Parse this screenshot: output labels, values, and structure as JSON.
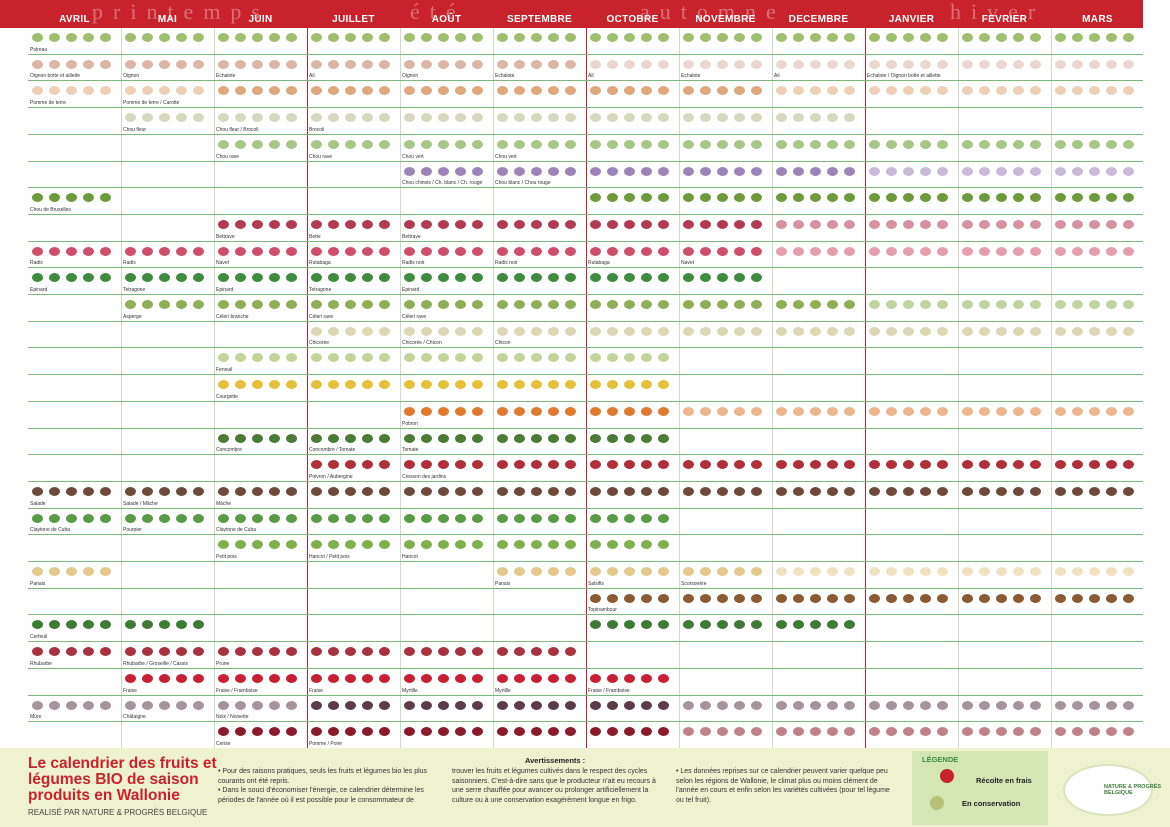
{
  "header": {
    "bg": "#c8232c",
    "seasons": [
      "printemps",
      "été",
      "automne",
      "hiver"
    ],
    "months": [
      "AVRIL",
      "MAI",
      "JUIN",
      "JUILLET",
      "AOÛT",
      "SEPTEMBRE",
      "OCTOBRE",
      "NOVEMBRE",
      "DECEMBRE",
      "JANVIER",
      "FEVRIER",
      "MARS"
    ]
  },
  "rows": [
    {
      "labels": [
        "Poireau"
      ],
      "fresh": [
        1,
        1,
        1,
        1,
        1,
        1,
        1,
        1,
        1,
        1,
        1,
        1
      ],
      "store": [
        0,
        0,
        0,
        0,
        0,
        0,
        0,
        0,
        0,
        0,
        0,
        0
      ],
      "color": "#9fbf6f"
    },
    {
      "labels": [
        "Oignon botte et aillette",
        "Oignon",
        "Echalote",
        "Ail",
        "Oignon",
        "Echalote",
        "Ail",
        "Echalote",
        "Ail",
        "Echalote / Oignon botte et aillette"
      ],
      "fresh": [
        1,
        1,
        1,
        1,
        1,
        1,
        0,
        0,
        0,
        0,
        0,
        0
      ],
      "store": [
        0,
        0,
        0,
        0,
        0,
        0,
        1,
        1,
        1,
        1,
        1,
        1
      ],
      "color": "#d9b7a8"
    },
    {
      "labels": [
        "Pomme de terre",
        "Pomme de terre / Carotte"
      ],
      "fresh": [
        0,
        0,
        1,
        1,
        1,
        1,
        1,
        1,
        0,
        0,
        0,
        0
      ],
      "store": [
        1,
        1,
        0,
        0,
        0,
        0,
        0,
        0,
        1,
        1,
        1,
        1
      ],
      "color": "#e0a77c"
    },
    {
      "labels": [
        "Chou fleur",
        "Chou fleur / Brocoli",
        "Brocoli"
      ],
      "fresh": [
        0,
        1,
        1,
        1,
        1,
        1,
        1,
        1,
        1,
        0,
        0,
        0
      ],
      "store": [
        0,
        0,
        0,
        0,
        0,
        0,
        0,
        0,
        0,
        0,
        0,
        0
      ],
      "color": "#d8d8c0"
    },
    {
      "labels": [
        "Chou rave",
        "Chou rave",
        "Chou vert",
        "Chou vert"
      ],
      "fresh": [
        0,
        0,
        1,
        1,
        1,
        1,
        1,
        1,
        1,
        1,
        1,
        1
      ],
      "store": [
        0,
        0,
        0,
        0,
        0,
        0,
        0,
        0,
        0,
        0,
        0,
        0
      ],
      "color": "#a8c58a"
    },
    {
      "labels": [
        "Chou chinois / Ch. blanc / Ch. rouge",
        "Chou blanc / Chou rouge"
      ],
      "fresh": [
        0,
        0,
        0,
        0,
        1,
        1,
        1,
        1,
        1,
        0,
        0,
        0
      ],
      "store": [
        0,
        0,
        0,
        0,
        0,
        0,
        0,
        0,
        0,
        1,
        1,
        1
      ],
      "color": "#9c84b8"
    },
    {
      "labels": [
        "Chou de Bruxelles"
      ],
      "fresh": [
        1,
        0,
        0,
        0,
        0,
        0,
        1,
        1,
        1,
        1,
        1,
        1
      ],
      "store": [
        0,
        0,
        0,
        0,
        0,
        0,
        0,
        0,
        0,
        0,
        0,
        0
      ],
      "color": "#6f9a3c"
    },
    {
      "labels": [
        "Bettrave",
        "Bette",
        "Bettrave"
      ],
      "fresh": [
        0,
        0,
        1,
        1,
        1,
        1,
        1,
        1,
        0,
        0,
        0,
        0
      ],
      "store": [
        0,
        0,
        0,
        0,
        0,
        0,
        0,
        0,
        1,
        1,
        1,
        1
      ],
      "color": "#b23a55"
    },
    {
      "labels": [
        "Radis",
        "Radis",
        "Navet",
        "Rutabaga",
        "Radis noir",
        "Radis noir",
        "Rutabaga",
        "Navet"
      ],
      "fresh": [
        1,
        1,
        1,
        1,
        1,
        1,
        1,
        1,
        0,
        0,
        0,
        0
      ],
      "store": [
        0,
        0,
        0,
        0,
        0,
        0,
        0,
        0,
        1,
        1,
        1,
        1
      ],
      "color": "#cf4f6a"
    },
    {
      "labels": [
        "Epinard",
        "Tetragone",
        "Epinard",
        "Tetragone",
        "Epinard"
      ],
      "fresh": [
        1,
        1,
        1,
        1,
        1,
        1,
        1,
        1,
        0,
        0,
        0,
        0
      ],
      "store": [
        0,
        0,
        0,
        0,
        0,
        0,
        0,
        0,
        0,
        0,
        0,
        0
      ],
      "color": "#3f8b3f"
    },
    {
      "labels": [
        "Asperge",
        "Céleri branche",
        "Céleri rave",
        "Céleri rave"
      ],
      "fresh": [
        0,
        1,
        1,
        1,
        1,
        1,
        1,
        1,
        1,
        0,
        0,
        0
      ],
      "store": [
        0,
        0,
        0,
        0,
        0,
        0,
        0,
        0,
        0,
        1,
        1,
        1
      ],
      "color": "#8fae55"
    },
    {
      "labels": [
        "Chicorée",
        "Chicorée / Chicon",
        "Chicon"
      ],
      "fresh": [
        0,
        0,
        0,
        1,
        1,
        1,
        1,
        1,
        1,
        1,
        1,
        1
      ],
      "store": [
        0,
        0,
        0,
        0,
        0,
        0,
        0,
        0,
        0,
        0,
        0,
        0
      ],
      "color": "#dcd7b4"
    },
    {
      "labels": [
        "Fenouil"
      ],
      "fresh": [
        0,
        0,
        1,
        1,
        1,
        1,
        1,
        0,
        0,
        0,
        0,
        0
      ],
      "store": [
        0,
        0,
        0,
        0,
        0,
        0,
        0,
        0,
        0,
        0,
        0,
        0
      ],
      "color": "#c3d49a"
    },
    {
      "labels": [
        "Courgette"
      ],
      "fresh": [
        0,
        0,
        1,
        1,
        1,
        1,
        1,
        0,
        0,
        0,
        0,
        0
      ],
      "store": [
        0,
        0,
        0,
        0,
        0,
        0,
        0,
        0,
        0,
        0,
        0,
        0
      ],
      "color": "#e3c23a"
    },
    {
      "labels": [
        "Potiron"
      ],
      "fresh": [
        0,
        0,
        0,
        0,
        1,
        1,
        1,
        0,
        0,
        0,
        0,
        0
      ],
      "store": [
        0,
        0,
        0,
        0,
        0,
        0,
        0,
        1,
        1,
        1,
        1,
        1
      ],
      "color": "#e07a2e"
    },
    {
      "labels": [
        "Concombre",
        "Concombre / Tomate",
        "Tomate"
      ],
      "fresh": [
        0,
        0,
        1,
        1,
        1,
        1,
        1,
        0,
        0,
        0,
        0,
        0
      ],
      "store": [
        0,
        0,
        0,
        0,
        0,
        0,
        0,
        0,
        0,
        0,
        0,
        0
      ],
      "color": "#4c7a37"
    },
    {
      "labels": [
        "Poivron / Aubergine",
        "Cresson des jardins"
      ],
      "fresh": [
        0,
        0,
        0,
        1,
        1,
        1,
        1,
        1,
        1,
        1,
        1,
        1
      ],
      "store": [
        0,
        0,
        0,
        0,
        0,
        0,
        0,
        0,
        0,
        0,
        0,
        0
      ],
      "color": "#b12f3a"
    },
    {
      "labels": [
        "Salade",
        "Salade / Mâche",
        "Mâche"
      ],
      "fresh": [
        1,
        1,
        1,
        1,
        1,
        1,
        1,
        1,
        1,
        1,
        1,
        1
      ],
      "store": [
        0,
        0,
        0,
        0,
        0,
        0,
        0,
        0,
        0,
        0,
        0,
        0
      ],
      "color": "#6e4a3c"
    },
    {
      "labels": [
        "Claytone de Cuba",
        "Pourpier",
        "Claytone de Cuba"
      ],
      "fresh": [
        1,
        1,
        1,
        1,
        1,
        1,
        1,
        0,
        0,
        0,
        0,
        0
      ],
      "store": [
        0,
        0,
        0,
        0,
        0,
        0,
        0,
        0,
        0,
        0,
        0,
        0
      ],
      "color": "#5c9b45"
    },
    {
      "labels": [
        "Petit pois",
        "Haricot / Petit pois",
        "Haricot"
      ],
      "fresh": [
        0,
        0,
        1,
        1,
        1,
        1,
        1,
        0,
        0,
        0,
        0,
        0
      ],
      "store": [
        0,
        0,
        0,
        0,
        0,
        0,
        0,
        0,
        0,
        0,
        0,
        0
      ],
      "color": "#7fb04c"
    },
    {
      "labels": [
        "Panais",
        "Panais",
        "Salsifis",
        "Scorsonère"
      ],
      "fresh": [
        1,
        0,
        0,
        0,
        0,
        1,
        1,
        1,
        0,
        0,
        0,
        0
      ],
      "store": [
        0,
        0,
        0,
        0,
        0,
        0,
        0,
        0,
        1,
        1,
        1,
        1
      ],
      "color": "#e4c98d"
    },
    {
      "labels": [
        "Topinambour"
      ],
      "fresh": [
        0,
        0,
        0,
        0,
        0,
        0,
        1,
        1,
        1,
        1,
        1,
        1
      ],
      "store": [
        0,
        0,
        0,
        0,
        0,
        0,
        0,
        0,
        0,
        0,
        0,
        0
      ],
      "color": "#8a5a34"
    },
    {
      "labels": [
        "Cerfeuil"
      ],
      "fresh": [
        1,
        1,
        0,
        0,
        0,
        0,
        1,
        1,
        1,
        0,
        0,
        0
      ],
      "store": [
        0,
        0,
        0,
        0,
        0,
        0,
        0,
        0,
        0,
        0,
        0,
        0
      ],
      "color": "#3f7a37"
    },
    {
      "labels": [
        "Rhubarbe",
        "Rhubarbe / Groseille / Cassis",
        "Prune"
      ],
      "fresh": [
        1,
        1,
        1,
        1,
        1,
        1,
        0,
        0,
        0,
        0,
        0,
        0
      ],
      "store": [
        0,
        0,
        0,
        0,
        0,
        0,
        0,
        0,
        0,
        0,
        0,
        0
      ],
      "color": "#a8323e"
    },
    {
      "labels": [
        "Fraise",
        "Fraise / Framboise",
        "Fraise",
        "Myrtille",
        "Myrtille",
        "Fraise / Framboise"
      ],
      "fresh": [
        0,
        1,
        1,
        1,
        1,
        1,
        1,
        0,
        0,
        0,
        0,
        0
      ],
      "store": [
        0,
        0,
        0,
        0,
        0,
        0,
        0,
        0,
        0,
        0,
        0,
        0
      ],
      "color": "#c81f34"
    },
    {
      "labels": [
        "Mûre",
        "Châtaigne",
        "Noix / Noisette"
      ],
      "fresh": [
        0,
        0,
        0,
        1,
        1,
        1,
        1,
        0,
        0,
        0,
        0,
        0
      ],
      "store": [
        1,
        1,
        1,
        0,
        0,
        0,
        0,
        1,
        1,
        1,
        1,
        1
      ],
      "color": "#5b3c4a"
    },
    {
      "labels": [
        "Cerise",
        "Pomme / Poire"
      ],
      "fresh": [
        0,
        0,
        1,
        1,
        1,
        1,
        1,
        0,
        0,
        0,
        0,
        0
      ],
      "store": [
        0,
        0,
        0,
        0,
        0,
        0,
        0,
        1,
        1,
        1,
        1,
        1
      ],
      "color": "#8b1b2a"
    }
  ],
  "footer": {
    "title": "Le calendrier des fruits et légumes BIO de saison produits en Wallonie",
    "subtitle": "REALISÉ PAR NATURE & PROGRÈS BELGIQUE",
    "col1": "• Pour des raisons pratiques, seuls les fruits et légumes bio les plus courants ont été repris.\n• Dans le souci d'économiser l'énergie, ce calendrier détermine les périodes de l'année où il est possible pour le consommateur de",
    "warnings_title": "Avertissements :",
    "col2": "trouver les fruits et légumes cultivés dans le respect des cycles saisonniers. C'est-à-dire sans que le producteur n'ait eu recours à une serre chauffée pour avancer ou prolonger artificiellement la culture ou à une conservation exagérément longue en frigo.",
    "col3": "• Les données reprises sur ce calendrier peuvent varier quelque peu selon les régions de Wallonie, le climat plus ou moins clément de l'année en cours et enfin selon les variétés cultivées (pour tel légume ou tel fruit).",
    "legend_title": "LÉGENDE",
    "legend_fresh": "Récolte en frais",
    "legend_store": "En conservation",
    "logo_text": "NATURE & PROGRÈS BELGIQUE"
  }
}
